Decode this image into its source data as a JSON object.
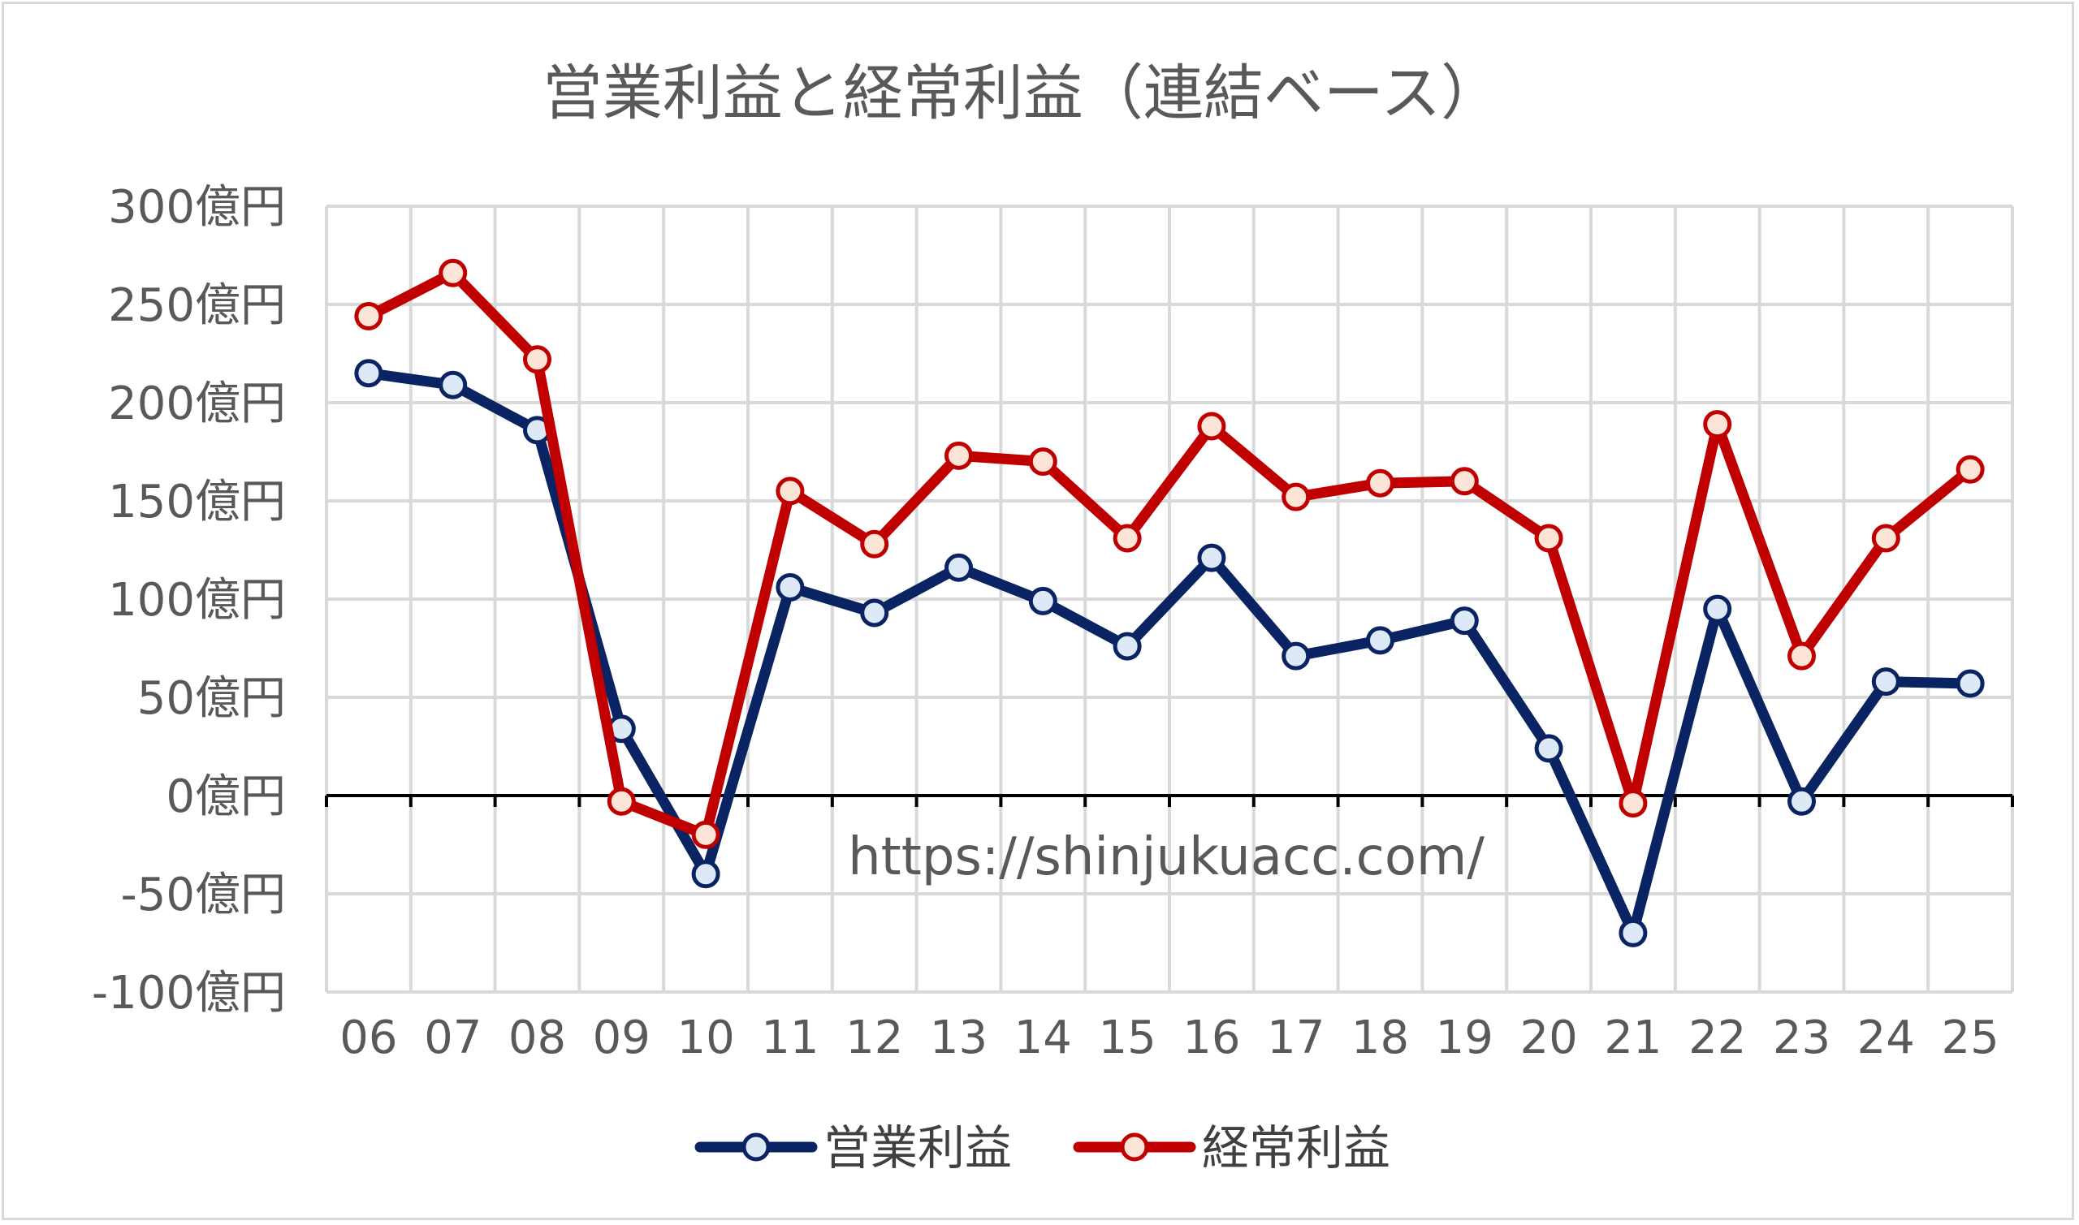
{
  "chart_data": {
    "type": "line",
    "title": "営業利益と経常利益（連結ベース）",
    "xlabel": "",
    "ylabel": "",
    "categories": [
      "06",
      "07",
      "08",
      "09",
      "10",
      "11",
      "12",
      "13",
      "14",
      "15",
      "16",
      "17",
      "18",
      "19",
      "20",
      "21",
      "22",
      "23",
      "24",
      "25"
    ],
    "ylim": [
      -100,
      300
    ],
    "y_ticks": [
      300,
      250,
      200,
      150,
      100,
      50,
      0,
      -50,
      -100
    ],
    "y_tick_labels": [
      "300億円",
      "250億円",
      "200億円",
      "150億円",
      "100億円",
      "50億円",
      "0億円",
      "-50億円",
      "-100億円"
    ],
    "grid": true,
    "legend_position": "bottom",
    "annotation": "https://shinjukuacc.com/",
    "series": [
      {
        "name": "営業利益",
        "color": "#0a2463",
        "marker_fill": "#dde9f7",
        "values": [
          215,
          209,
          186,
          34,
          -40,
          106,
          93,
          116,
          99,
          76,
          121,
          71,
          79,
          89,
          24,
          -70,
          95,
          -3,
          58,
          57
        ]
      },
      {
        "name": "経常利益",
        "color": "#c00000",
        "marker_fill": "#fce4d6",
        "values": [
          244,
          266,
          222,
          -3,
          -20,
          155,
          128,
          173,
          170,
          131,
          188,
          152,
          159,
          160,
          131,
          -4,
          189,
          71,
          131,
          166
        ]
      }
    ]
  }
}
